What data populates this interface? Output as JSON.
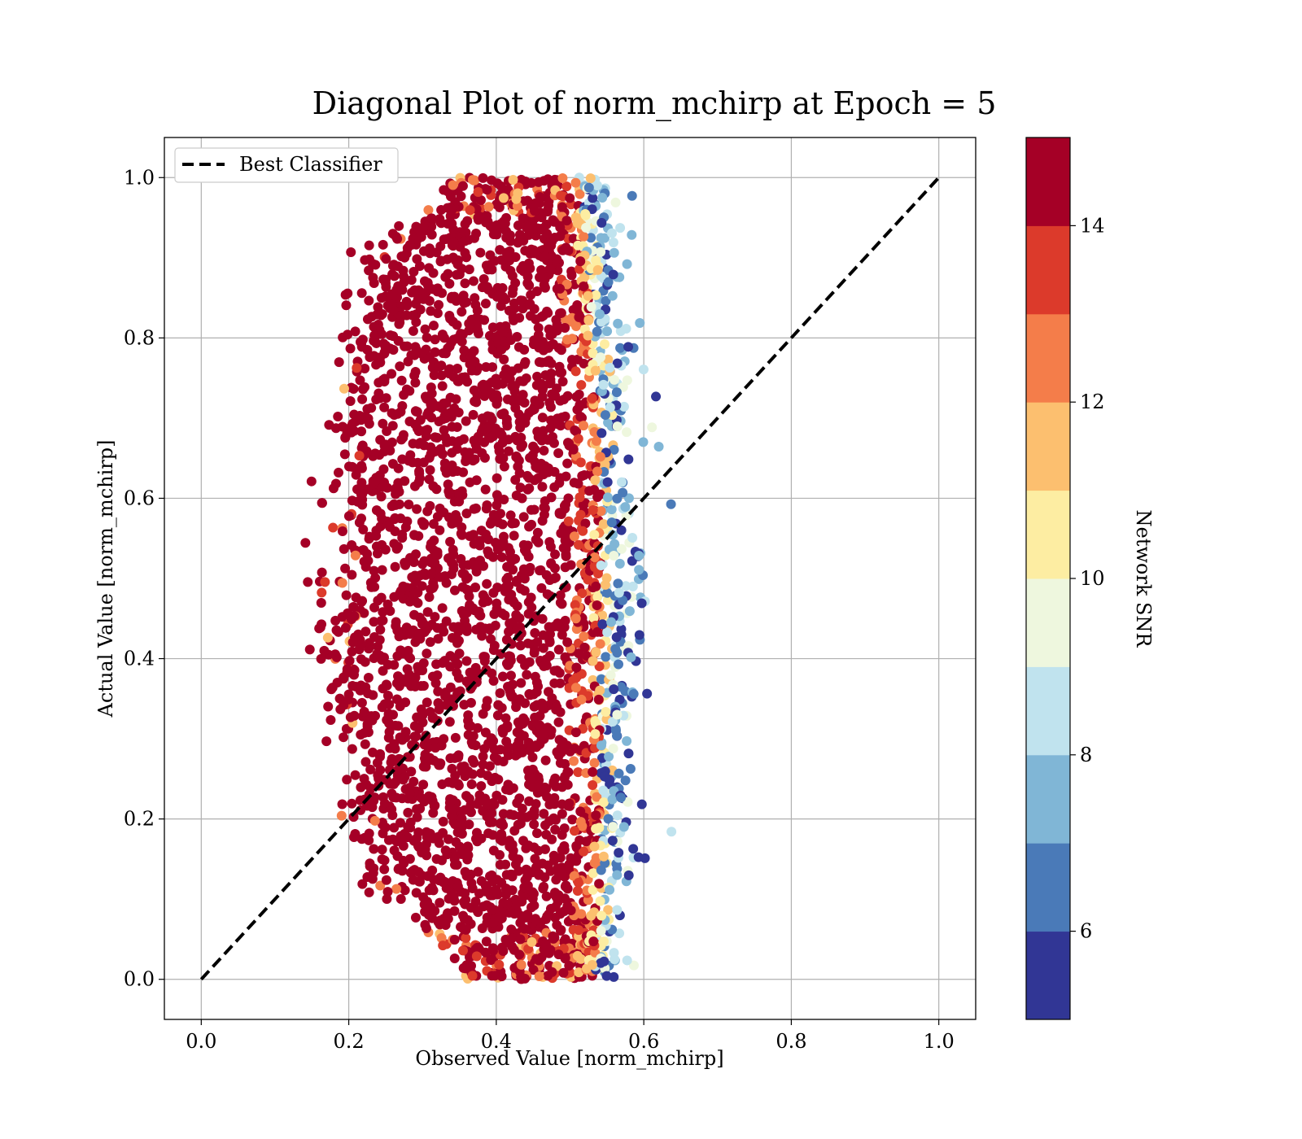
{
  "chart_data": {
    "type": "scatter",
    "title": "Diagonal Plot of norm_mchirp at Epoch = 5",
    "xlabel": "Observed Value [norm_mchirp]",
    "ylabel": "Actual Value [norm_mchirp]",
    "xlim": [
      -0.05,
      1.05
    ],
    "ylim": [
      -0.05,
      1.05
    ],
    "xticks": [
      0.0,
      0.2,
      0.4,
      0.6,
      0.8,
      1.0
    ],
    "yticks": [
      0.0,
      0.2,
      0.4,
      0.6,
      0.8,
      1.0
    ],
    "xtick_labels": [
      "0.0",
      "0.2",
      "0.4",
      "0.6",
      "0.8",
      "1.0"
    ],
    "ytick_labels": [
      "0.0",
      "0.2",
      "0.4",
      "0.6",
      "0.8",
      "1.0"
    ],
    "grid": true,
    "legend": {
      "position": "top-left",
      "entries": [
        "Best Classifier"
      ]
    },
    "reference_line": {
      "name": "Best Classifier",
      "style": "dashed",
      "color": "#000000",
      "points": [
        [
          0.0,
          0.0
        ],
        [
          1.0,
          1.0
        ]
      ]
    },
    "series": [
      {
        "name": "predictions",
        "description_points": "dense cloud; observed spans ~0.17-0.61 across actual 0.0-1.0",
        "observed_core_range_by_actual": [
          [
            0.0,
            0.36,
            0.52
          ],
          [
            0.1,
            0.27,
            0.53
          ],
          [
            0.2,
            0.24,
            0.53
          ],
          [
            0.3,
            0.22,
            0.53
          ],
          [
            0.4,
            0.21,
            0.53
          ],
          [
            0.5,
            0.21,
            0.53
          ],
          [
            0.6,
            0.21,
            0.53
          ],
          [
            0.7,
            0.22,
            0.53
          ],
          [
            0.8,
            0.24,
            0.52
          ],
          [
            0.9,
            0.26,
            0.51
          ],
          [
            1.0,
            0.34,
            0.5
          ]
        ],
        "color_by": "Network SNR"
      }
    ],
    "colorbar": {
      "label": "Network SNR",
      "range": [
        5,
        15
      ],
      "ticks": [
        6,
        8,
        10,
        12,
        14
      ],
      "tick_labels": [
        "6",
        "8",
        "10",
        "12",
        "14"
      ],
      "bins": [
        {
          "from": 5,
          "to": 6,
          "color": "#313695"
        },
        {
          "from": 6,
          "to": 7,
          "color": "#4a7ab8"
        },
        {
          "from": 7,
          "to": 8,
          "color": "#80b6d6"
        },
        {
          "from": 8,
          "to": 9,
          "color": "#c0e3ee"
        },
        {
          "from": 9,
          "to": 10,
          "color": "#eef7de"
        },
        {
          "from": 10,
          "to": 11,
          "color": "#fdeda2"
        },
        {
          "from": 11,
          "to": 12,
          "color": "#fcbf6f"
        },
        {
          "from": 12,
          "to": 13,
          "color": "#f47d4a"
        },
        {
          "from": 13,
          "to": 14,
          "color": "#dc3a2b"
        },
        {
          "from": 14,
          "to": 15,
          "color": "#a50026"
        }
      ]
    }
  }
}
